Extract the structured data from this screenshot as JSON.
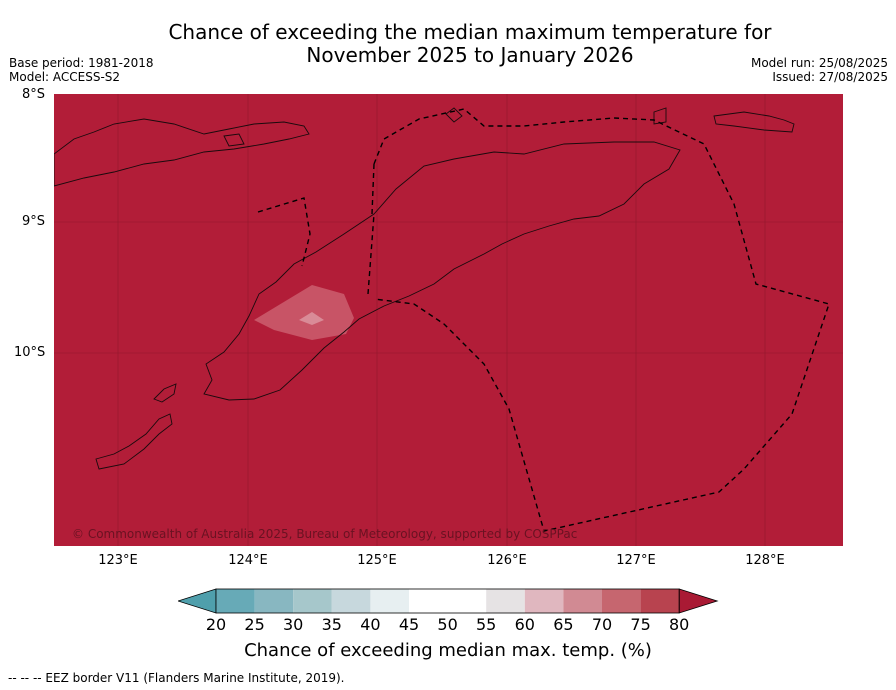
{
  "title_line1": "Chance of exceeding the median maximum temperature for",
  "title_line2": "November 2025 to January 2026",
  "base_period": "Base period: 1981-2018",
  "model": "Model: ACCESS-S2",
  "model_run": "Model run: 25/08/2025",
  "issued": "Issued: 27/08/2025",
  "lat_labels": [
    "8°S",
    "9°S",
    "10°S"
  ],
  "lon_labels": [
    "123°E",
    "124°E",
    "125°E",
    "126°E",
    "127°E",
    "128°E"
  ],
  "copyright": "© Commonwealth of Australia 2025, Bureau of Meteorology, supported by COSPPac",
  "colorbar": {
    "ticks": [
      "20",
      "25",
      "30",
      "35",
      "40",
      "45",
      "50",
      "55",
      "60",
      "65",
      "70",
      "75",
      "80"
    ],
    "colors": [
      "#4f9fac",
      "#67aab7",
      "#88b7c1",
      "#a6c7cb",
      "#c7d8dd",
      "#e7eff1",
      "#ffffff",
      "#ffffff",
      "#e6e3e4",
      "#e0b7bf",
      "#d18a93",
      "#c6666f",
      "#b8434f",
      "#a91a34"
    ],
    "label": "Chance of exceeding median max. temp. (%)"
  },
  "map": {
    "background_color": "#b21d38",
    "anomaly_color": "#c85466",
    "anomaly_inner_color": "#d98b97"
  },
  "footer": "--  --  -- EEZ border V11 (Flanders Marine Institute, 2019)."
}
